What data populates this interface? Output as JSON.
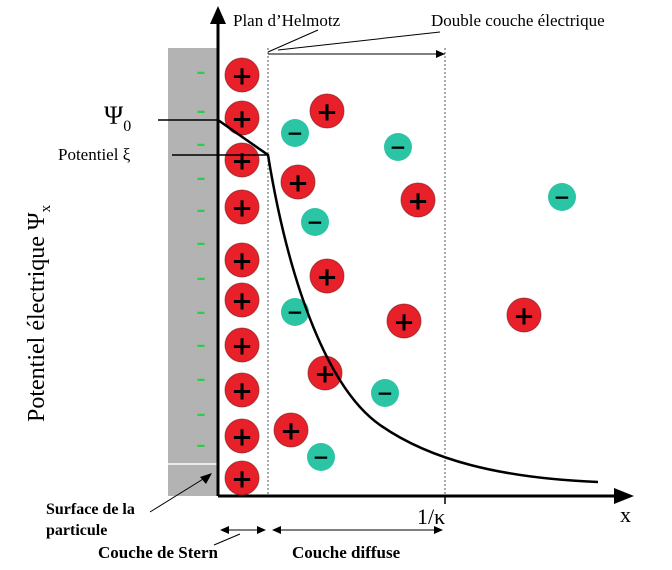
{
  "labels": {
    "plan_helmotz": "Plan d’Helmotz",
    "double_couche": "Double couche électrique",
    "psi0_symbol": "Ψ",
    "psi0_sub": "0",
    "zeta": "Potentiel ξ",
    "y_axis": "Potentiel électrique Ψ",
    "y_axis_sub": "x",
    "x_axis": "x",
    "kappa": "1/κ",
    "surface_line1": "Surface de la",
    "surface_line2": "particule",
    "stern": "Couche de Stern",
    "diffuse": "Couche diffuse"
  },
  "symbols": {
    "positive": "+",
    "negative": "−",
    "surface_charge": "–"
  },
  "colors": {
    "positive_ion": "#e8202a",
    "negative_ion": "#2bc4a4",
    "surface_fill": "#b3b3b3",
    "surface_charge": "#2ecc4a",
    "line": "#000000"
  }
}
